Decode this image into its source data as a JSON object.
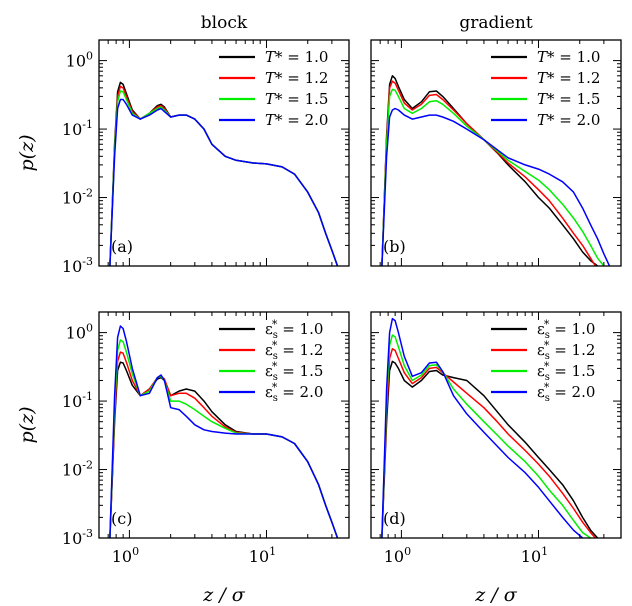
{
  "chart_data": [
    {
      "type": "line",
      "panel_label": "(a)",
      "column_title": "block",
      "ylabel": "p(z)",
      "xlabel": "",
      "x_scale": "log",
      "y_scale": "log",
      "xlim": [
        0.6,
        40
      ],
      "ylim": [
        0.001,
        2
      ],
      "x_ticks": [
        1,
        10
      ],
      "y_ticks": [
        0.001,
        0.01,
        0.1,
        1
      ],
      "legend_position": "top-right",
      "legend_symbol": "T*",
      "series": [
        {
          "name": "1.0",
          "color": "#000000",
          "x": [
            0.72,
            0.78,
            0.82,
            0.86,
            0.9,
            0.95,
            1.05,
            1.2,
            1.4,
            1.6,
            1.7,
            1.8,
            2.0,
            2.3,
            2.6,
            3.0,
            3.5,
            4.0,
            5.0,
            6.0,
            8.0,
            10,
            13,
            16,
            20,
            24,
            27,
            30,
            33
          ],
          "y": [
            0.001,
            0.06,
            0.35,
            0.48,
            0.45,
            0.33,
            0.19,
            0.14,
            0.17,
            0.22,
            0.23,
            0.21,
            0.15,
            0.16,
            0.16,
            0.14,
            0.1,
            0.06,
            0.04,
            0.035,
            0.032,
            0.031,
            0.028,
            0.022,
            0.012,
            0.006,
            0.003,
            0.0017,
            0.001
          ]
        },
        {
          "name": "1.2",
          "color": "#ff0000",
          "x": [
            0.72,
            0.78,
            0.82,
            0.86,
            0.9,
            0.95,
            1.05,
            1.2,
            1.4,
            1.6,
            1.7,
            1.8,
            2.0,
            2.3,
            2.6,
            3.0,
            3.5,
            4.0,
            5.0,
            6.0,
            8.0,
            10,
            13,
            16,
            20,
            24,
            27,
            30,
            33
          ],
          "y": [
            0.001,
            0.05,
            0.3,
            0.42,
            0.4,
            0.3,
            0.18,
            0.14,
            0.17,
            0.21,
            0.22,
            0.2,
            0.15,
            0.16,
            0.16,
            0.14,
            0.1,
            0.06,
            0.04,
            0.035,
            0.032,
            0.031,
            0.028,
            0.022,
            0.012,
            0.006,
            0.003,
            0.0017,
            0.001
          ]
        },
        {
          "name": "1.5",
          "color": "#00ee00",
          "x": [
            0.72,
            0.78,
            0.82,
            0.86,
            0.9,
            0.95,
            1.05,
            1.2,
            1.4,
            1.6,
            1.7,
            1.8,
            2.0,
            2.3,
            2.6,
            3.0,
            3.5,
            4.0,
            5.0,
            6.0,
            8.0,
            10,
            13,
            16,
            20,
            24,
            27,
            30,
            33
          ],
          "y": [
            0.001,
            0.05,
            0.25,
            0.36,
            0.35,
            0.27,
            0.17,
            0.14,
            0.17,
            0.2,
            0.21,
            0.19,
            0.15,
            0.16,
            0.16,
            0.14,
            0.1,
            0.06,
            0.04,
            0.035,
            0.032,
            0.031,
            0.028,
            0.022,
            0.012,
            0.006,
            0.003,
            0.0017,
            0.001
          ]
        },
        {
          "name": "2.0",
          "color": "#0000ff",
          "x": [
            0.72,
            0.78,
            0.82,
            0.86,
            0.9,
            0.95,
            1.05,
            1.2,
            1.4,
            1.6,
            1.7,
            1.8,
            2.0,
            2.3,
            2.6,
            3.0,
            3.5,
            4.0,
            5.0,
            6.0,
            8.0,
            10,
            13,
            16,
            20,
            24,
            27,
            30,
            33
          ],
          "y": [
            0.001,
            0.04,
            0.2,
            0.27,
            0.27,
            0.23,
            0.16,
            0.14,
            0.16,
            0.19,
            0.2,
            0.18,
            0.15,
            0.16,
            0.16,
            0.14,
            0.1,
            0.06,
            0.04,
            0.035,
            0.032,
            0.031,
            0.028,
            0.022,
            0.012,
            0.006,
            0.003,
            0.0017,
            0.001
          ]
        }
      ]
    },
    {
      "type": "line",
      "panel_label": "(b)",
      "column_title": "gradient",
      "ylabel": "",
      "xlabel": "",
      "x_scale": "log",
      "y_scale": "log",
      "xlim": [
        0.6,
        40
      ],
      "ylim": [
        0.001,
        2
      ],
      "x_ticks": [
        1,
        10
      ],
      "y_ticks": [
        0.001,
        0.01,
        0.1,
        1
      ],
      "legend_position": "top-right",
      "legend_symbol": "T*",
      "series": [
        {
          "name": "1.0",
          "color": "#000000",
          "x": [
            0.72,
            0.78,
            0.82,
            0.86,
            0.9,
            0.95,
            1.05,
            1.2,
            1.4,
            1.6,
            1.8,
            2.0,
            2.4,
            3.0,
            4.0,
            5.0,
            6.0,
            8.0,
            10,
            12,
            15,
            18,
            21,
            24,
            27
          ],
          "y": [
            0.001,
            0.08,
            0.45,
            0.6,
            0.55,
            0.42,
            0.27,
            0.2,
            0.25,
            0.35,
            0.36,
            0.3,
            0.2,
            0.12,
            0.07,
            0.045,
            0.03,
            0.017,
            0.01,
            0.007,
            0.004,
            0.0025,
            0.0016,
            0.0012,
            0.001
          ]
        },
        {
          "name": "1.2",
          "color": "#ff0000",
          "x": [
            0.72,
            0.78,
            0.82,
            0.86,
            0.9,
            0.95,
            1.05,
            1.2,
            1.4,
            1.6,
            1.8,
            2.0,
            2.4,
            3.0,
            4.0,
            5.0,
            6.0,
            8.0,
            10,
            12,
            15,
            18,
            21,
            24,
            26
          ],
          "y": [
            0.001,
            0.07,
            0.4,
            0.5,
            0.47,
            0.37,
            0.24,
            0.19,
            0.23,
            0.31,
            0.32,
            0.27,
            0.19,
            0.12,
            0.07,
            0.046,
            0.032,
            0.02,
            0.013,
            0.009,
            0.005,
            0.003,
            0.002,
            0.0013,
            0.001
          ]
        },
        {
          "name": "1.5",
          "color": "#00ee00",
          "x": [
            0.72,
            0.78,
            0.82,
            0.86,
            0.9,
            0.95,
            1.05,
            1.2,
            1.4,
            1.6,
            1.8,
            2.0,
            2.4,
            3.0,
            4.0,
            5.0,
            6.0,
            8.0,
            10,
            12,
            15,
            18,
            21,
            24,
            27,
            30
          ],
          "y": [
            0.001,
            0.06,
            0.3,
            0.38,
            0.37,
            0.3,
            0.2,
            0.17,
            0.2,
            0.25,
            0.26,
            0.23,
            0.17,
            0.11,
            0.07,
            0.048,
            0.035,
            0.024,
            0.018,
            0.013,
            0.008,
            0.005,
            0.0032,
            0.002,
            0.0013,
            0.001
          ]
        },
        {
          "name": "2.0",
          "color": "#0000ff",
          "x": [
            0.72,
            0.78,
            0.82,
            0.86,
            0.9,
            0.95,
            1.05,
            1.2,
            1.4,
            1.6,
            1.8,
            2.0,
            2.4,
            3.0,
            4.0,
            5.0,
            6.0,
            8.0,
            10,
            12,
            15,
            18,
            21,
            24,
            27,
            30,
            33
          ],
          "y": [
            0.001,
            0.04,
            0.15,
            0.19,
            0.2,
            0.19,
            0.16,
            0.14,
            0.15,
            0.16,
            0.16,
            0.15,
            0.13,
            0.1,
            0.07,
            0.05,
            0.038,
            0.03,
            0.026,
            0.022,
            0.017,
            0.012,
            0.007,
            0.004,
            0.0025,
            0.0015,
            0.001
          ]
        }
      ]
    },
    {
      "type": "line",
      "panel_label": "(c)",
      "column_title": "",
      "ylabel": "p(z)",
      "xlabel": "z / σ",
      "x_scale": "log",
      "y_scale": "log",
      "xlim": [
        0.6,
        40
      ],
      "ylim": [
        0.001,
        2
      ],
      "x_ticks": [
        1,
        10
      ],
      "y_ticks": [
        0.001,
        0.01,
        0.1,
        1
      ],
      "legend_position": "top-right",
      "legend_symbol": "εs*",
      "series": [
        {
          "name": "1.0",
          "color": "#000000",
          "x": [
            0.72,
            0.78,
            0.82,
            0.86,
            0.9,
            0.95,
            1.05,
            1.2,
            1.4,
            1.6,
            1.7,
            1.8,
            2.0,
            2.3,
            2.6,
            3.0,
            3.5,
            4.0,
            5.0,
            6.0,
            8.0,
            10,
            13,
            16,
            20,
            24,
            27,
            30,
            33
          ],
          "y": [
            0.001,
            0.05,
            0.28,
            0.37,
            0.36,
            0.28,
            0.17,
            0.12,
            0.15,
            0.21,
            0.22,
            0.2,
            0.12,
            0.14,
            0.15,
            0.14,
            0.1,
            0.07,
            0.045,
            0.036,
            0.033,
            0.033,
            0.03,
            0.024,
            0.013,
            0.006,
            0.003,
            0.0017,
            0.001
          ]
        },
        {
          "name": "1.2",
          "color": "#ff0000",
          "x": [
            0.72,
            0.78,
            0.82,
            0.86,
            0.9,
            0.95,
            1.05,
            1.2,
            1.4,
            1.6,
            1.7,
            1.8,
            2.0,
            2.3,
            2.6,
            3.0,
            3.5,
            4.0,
            5.0,
            6.0,
            8.0,
            10,
            13,
            16,
            20,
            24,
            27,
            30,
            33
          ],
          "y": [
            0.001,
            0.06,
            0.38,
            0.52,
            0.5,
            0.37,
            0.2,
            0.12,
            0.15,
            0.22,
            0.23,
            0.21,
            0.12,
            0.13,
            0.13,
            0.11,
            0.08,
            0.06,
            0.042,
            0.035,
            0.033,
            0.033,
            0.03,
            0.024,
            0.013,
            0.006,
            0.003,
            0.0017,
            0.001
          ]
        },
        {
          "name": "1.5",
          "color": "#00ee00",
          "x": [
            0.72,
            0.78,
            0.82,
            0.86,
            0.9,
            0.95,
            1.05,
            1.2,
            1.4,
            1.6,
            1.7,
            1.8,
            2.0,
            2.3,
            2.6,
            3.0,
            3.5,
            4.0,
            5.0,
            6.0,
            8.0,
            10,
            13,
            16,
            20,
            24,
            27,
            30,
            33
          ],
          "y": [
            0.001,
            0.08,
            0.55,
            0.78,
            0.74,
            0.52,
            0.25,
            0.12,
            0.14,
            0.22,
            0.23,
            0.2,
            0.1,
            0.1,
            0.09,
            0.075,
            0.06,
            0.05,
            0.04,
            0.034,
            0.033,
            0.033,
            0.03,
            0.024,
            0.013,
            0.006,
            0.003,
            0.0017,
            0.001
          ]
        },
        {
          "name": "2.0",
          "color": "#0000ff",
          "x": [
            0.72,
            0.78,
            0.82,
            0.86,
            0.9,
            0.95,
            1.05,
            1.2,
            1.4,
            1.6,
            1.7,
            1.8,
            2.0,
            2.3,
            2.6,
            3.0,
            3.5,
            4.0,
            5.0,
            6.0,
            8.0,
            10,
            13,
            16,
            20,
            24,
            27,
            30,
            33
          ],
          "y": [
            0.001,
            0.12,
            0.85,
            1.25,
            1.15,
            0.75,
            0.3,
            0.12,
            0.13,
            0.22,
            0.24,
            0.2,
            0.08,
            0.075,
            0.06,
            0.045,
            0.038,
            0.036,
            0.034,
            0.033,
            0.033,
            0.033,
            0.03,
            0.024,
            0.013,
            0.006,
            0.003,
            0.0017,
            0.001
          ]
        }
      ]
    },
    {
      "type": "line",
      "panel_label": "(d)",
      "column_title": "",
      "ylabel": "",
      "xlabel": "z / σ",
      "x_scale": "log",
      "y_scale": "log",
      "xlim": [
        0.6,
        40
      ],
      "ylim": [
        0.001,
        2
      ],
      "x_ticks": [
        1,
        10
      ],
      "y_ticks": [
        0.001,
        0.01,
        0.1,
        1
      ],
      "legend_position": "top-right",
      "legend_symbol": "εs*",
      "series": [
        {
          "name": "1.0",
          "color": "#000000",
          "x": [
            0.72,
            0.78,
            0.82,
            0.86,
            0.9,
            0.95,
            1.05,
            1.2,
            1.4,
            1.6,
            1.8,
            2.0,
            2.4,
            3.0,
            4.0,
            5.0,
            6.0,
            8.0,
            10,
            12,
            15,
            18,
            21,
            24,
            27
          ],
          "y": [
            0.001,
            0.05,
            0.28,
            0.38,
            0.36,
            0.3,
            0.2,
            0.16,
            0.2,
            0.27,
            0.28,
            0.24,
            0.22,
            0.2,
            0.12,
            0.07,
            0.045,
            0.025,
            0.015,
            0.01,
            0.006,
            0.0035,
            0.002,
            0.0013,
            0.001
          ]
        },
        {
          "name": "1.2",
          "color": "#ff0000",
          "x": [
            0.72,
            0.78,
            0.82,
            0.86,
            0.9,
            0.95,
            1.05,
            1.2,
            1.4,
            1.6,
            1.8,
            2.0,
            2.4,
            3.0,
            4.0,
            5.0,
            6.0,
            8.0,
            10,
            12,
            15,
            18,
            21,
            24,
            26
          ],
          "y": [
            0.001,
            0.07,
            0.42,
            0.58,
            0.55,
            0.42,
            0.26,
            0.18,
            0.22,
            0.3,
            0.31,
            0.26,
            0.19,
            0.13,
            0.08,
            0.05,
            0.033,
            0.019,
            0.012,
            0.008,
            0.0045,
            0.0027,
            0.0017,
            0.0012,
            0.001
          ]
        },
        {
          "name": "1.5",
          "color": "#00ee00",
          "x": [
            0.72,
            0.78,
            0.82,
            0.86,
            0.9,
            0.95,
            1.05,
            1.2,
            1.4,
            1.6,
            1.8,
            2.0,
            2.4,
            3.0,
            4.0,
            5.0,
            6.0,
            8.0,
            10,
            12,
            15,
            18,
            21,
            24
          ],
          "y": [
            0.001,
            0.1,
            0.65,
            0.92,
            0.87,
            0.62,
            0.33,
            0.2,
            0.24,
            0.33,
            0.34,
            0.27,
            0.15,
            0.09,
            0.05,
            0.032,
            0.022,
            0.013,
            0.008,
            0.005,
            0.003,
            0.0018,
            0.0012,
            0.001
          ]
        },
        {
          "name": "2.0",
          "color": "#0000ff",
          "x": [
            0.72,
            0.78,
            0.82,
            0.86,
            0.9,
            0.95,
            1.05,
            1.2,
            1.4,
            1.6,
            1.8,
            2.0,
            2.4,
            3.0,
            4.0,
            5.0,
            6.0,
            8.0,
            10,
            12,
            15,
            18,
            21
          ],
          "y": [
            0.001,
            0.15,
            1.0,
            1.6,
            1.5,
            1.0,
            0.45,
            0.23,
            0.26,
            0.36,
            0.37,
            0.27,
            0.12,
            0.065,
            0.035,
            0.022,
            0.015,
            0.009,
            0.0055,
            0.0035,
            0.002,
            0.0013,
            0.001
          ]
        }
      ]
    }
  ]
}
